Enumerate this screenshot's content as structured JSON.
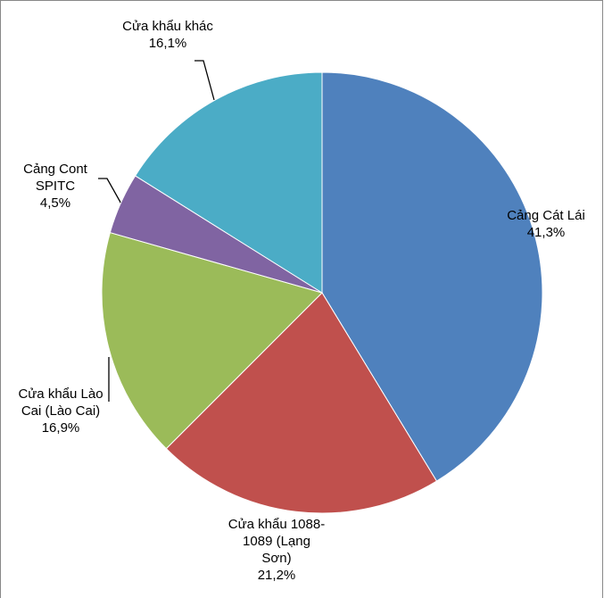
{
  "chart_data": {
    "type": "pie",
    "categories": [
      "Cảng Cát Lái",
      "Cửa khẩu 1088-1089 (Lạng Sơn)",
      "Cửa khẩu Lào Cai (Lào Cai)",
      "Cảng Cont SPITC",
      "Cửa khẩu khác"
    ],
    "values": [
      41.3,
      21.2,
      16.9,
      4.5,
      16.1
    ],
    "value_labels": [
      "41,3%",
      "21,2%",
      "16,9%",
      "4,5%",
      "16,1%"
    ],
    "colors": [
      "#4f81bd",
      "#c0504d",
      "#9bbb59",
      "#8064a2",
      "#4bacc6"
    ]
  }
}
